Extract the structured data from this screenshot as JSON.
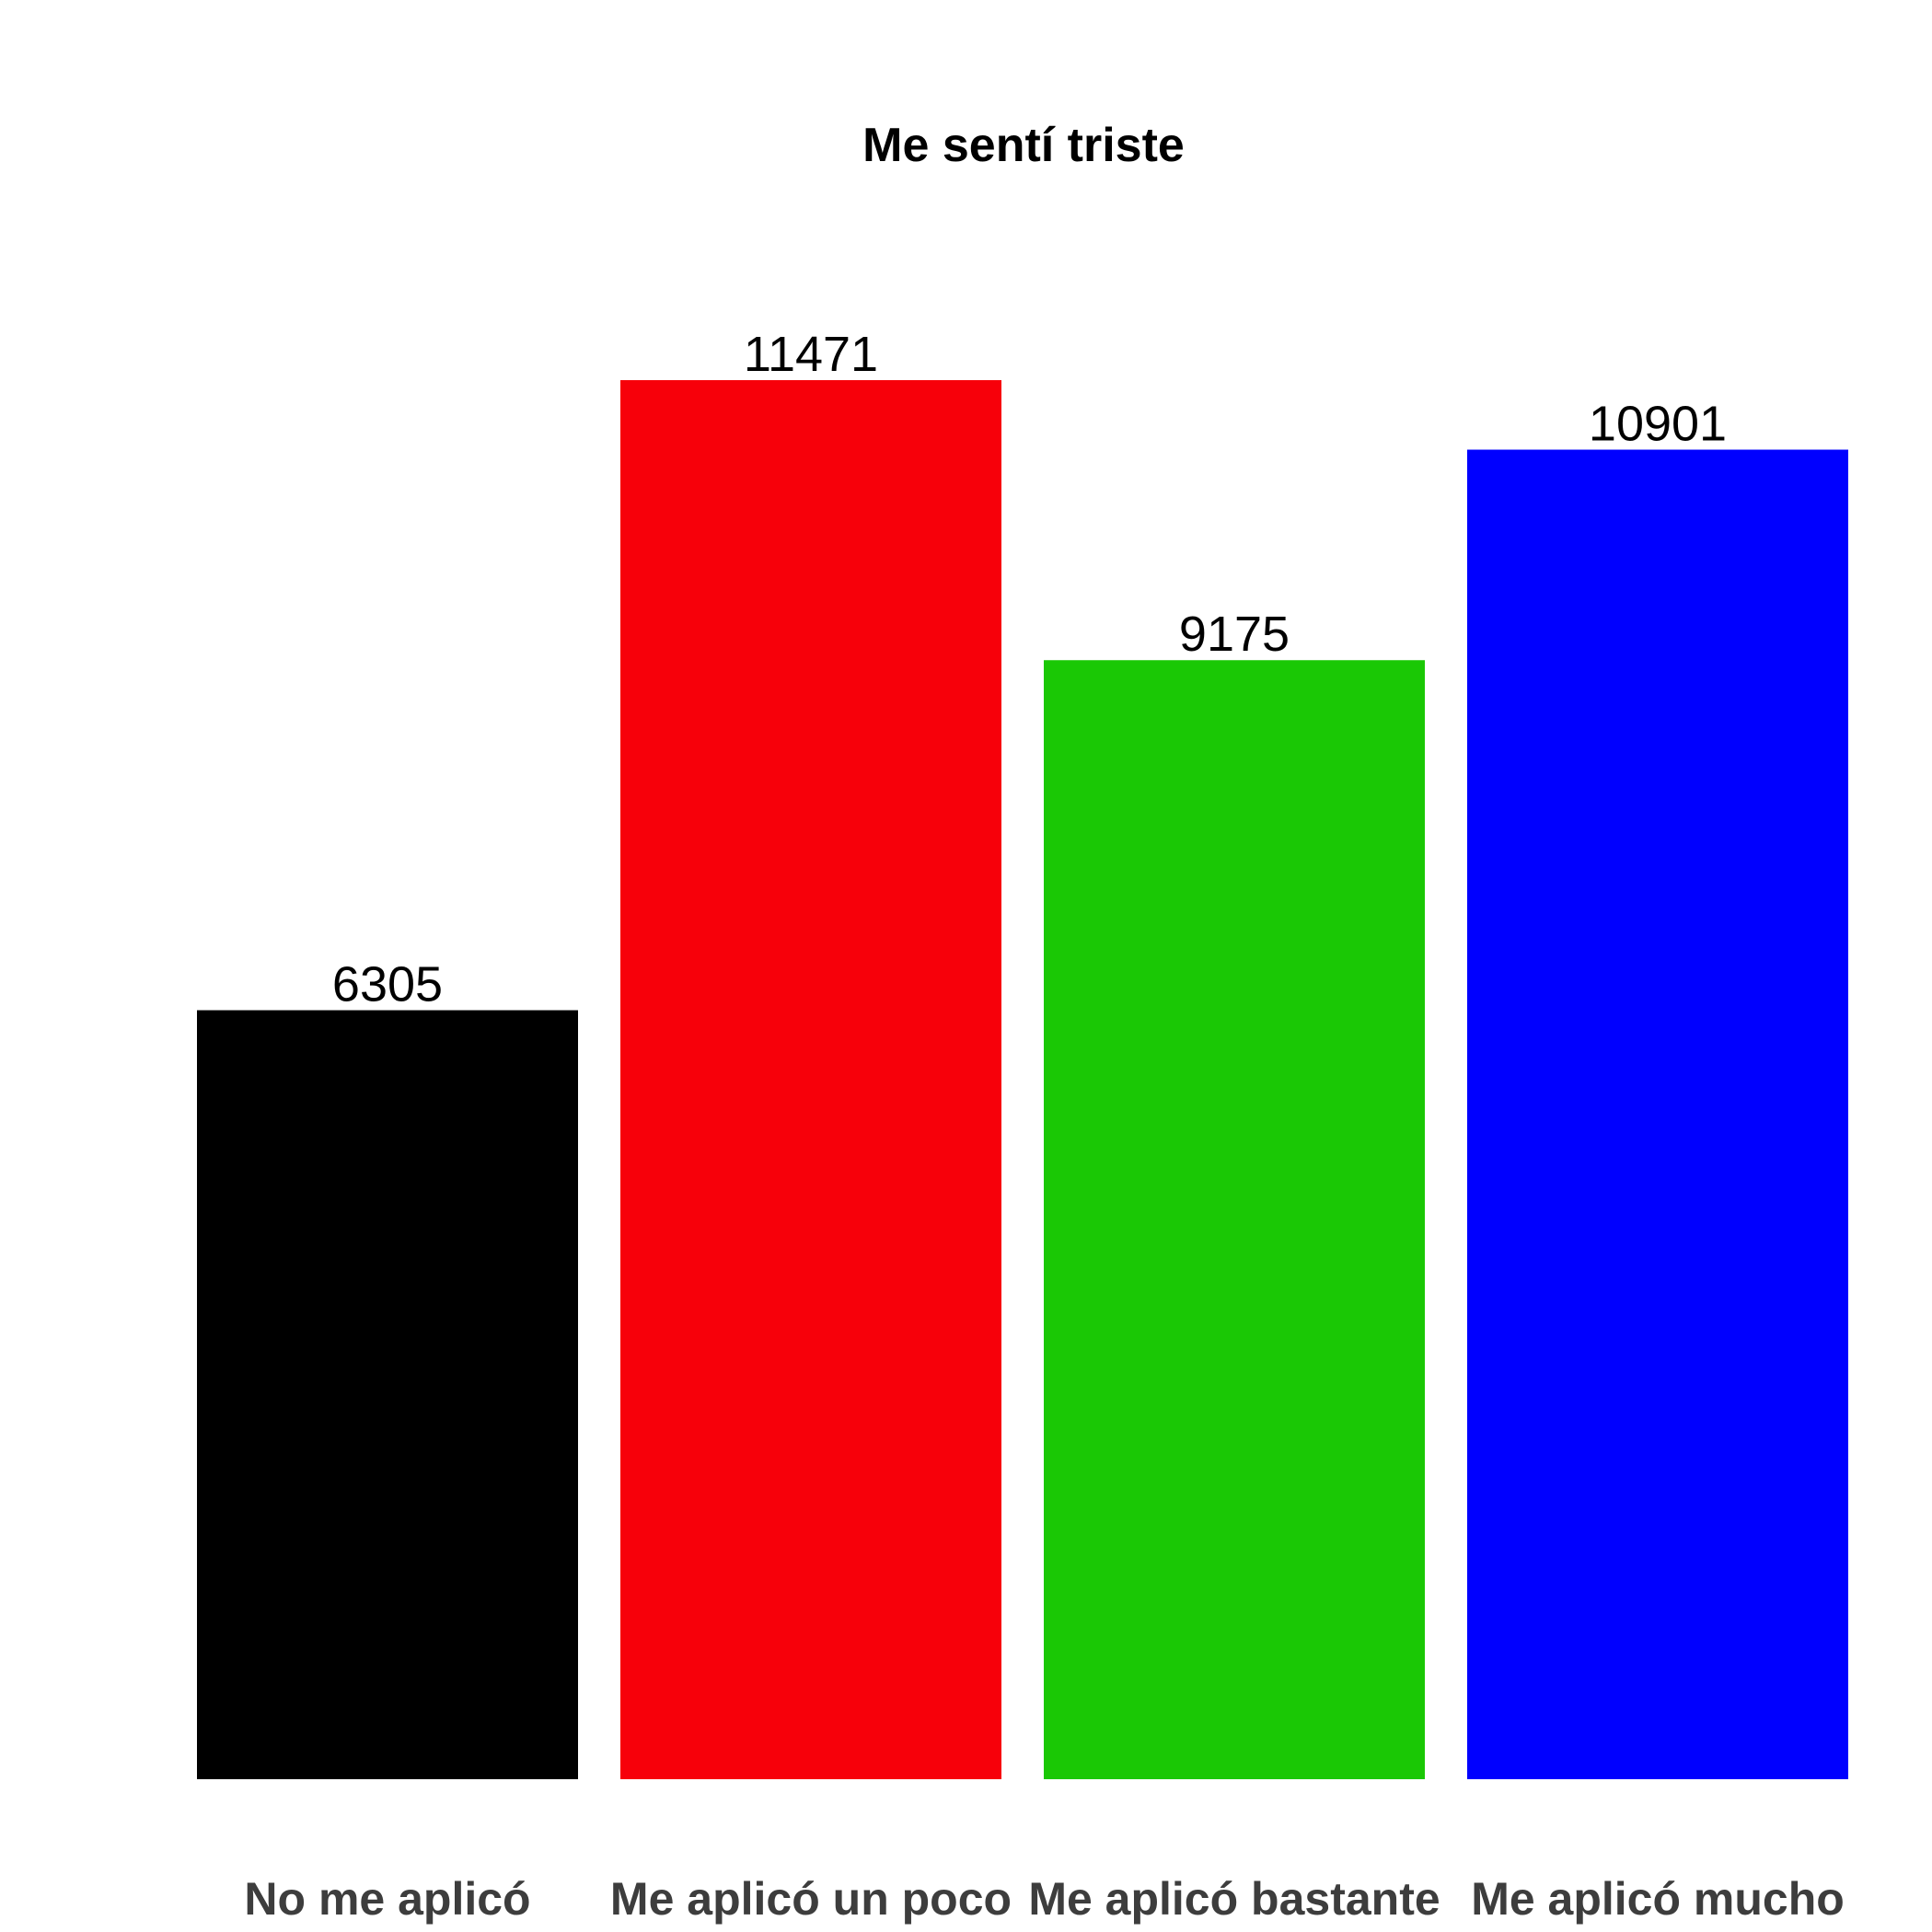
{
  "chart_data": {
    "type": "bar",
    "title": "Me sentí triste",
    "xlabel": "",
    "ylabel": "",
    "categories": [
      "No me aplicó",
      "Me aplicó un poco",
      "Me aplicó bastante",
      "Me aplicó mucho"
    ],
    "values": [
      6305,
      11471,
      9175,
      10901
    ],
    "colors": [
      "#000000",
      "#f7000a",
      "#1ac805",
      "#0000ff"
    ],
    "data_labels": [
      "6305",
      "11471",
      "9175",
      "10901"
    ],
    "ylim": [
      0,
      11471
    ],
    "grid": false,
    "legend": "none"
  }
}
